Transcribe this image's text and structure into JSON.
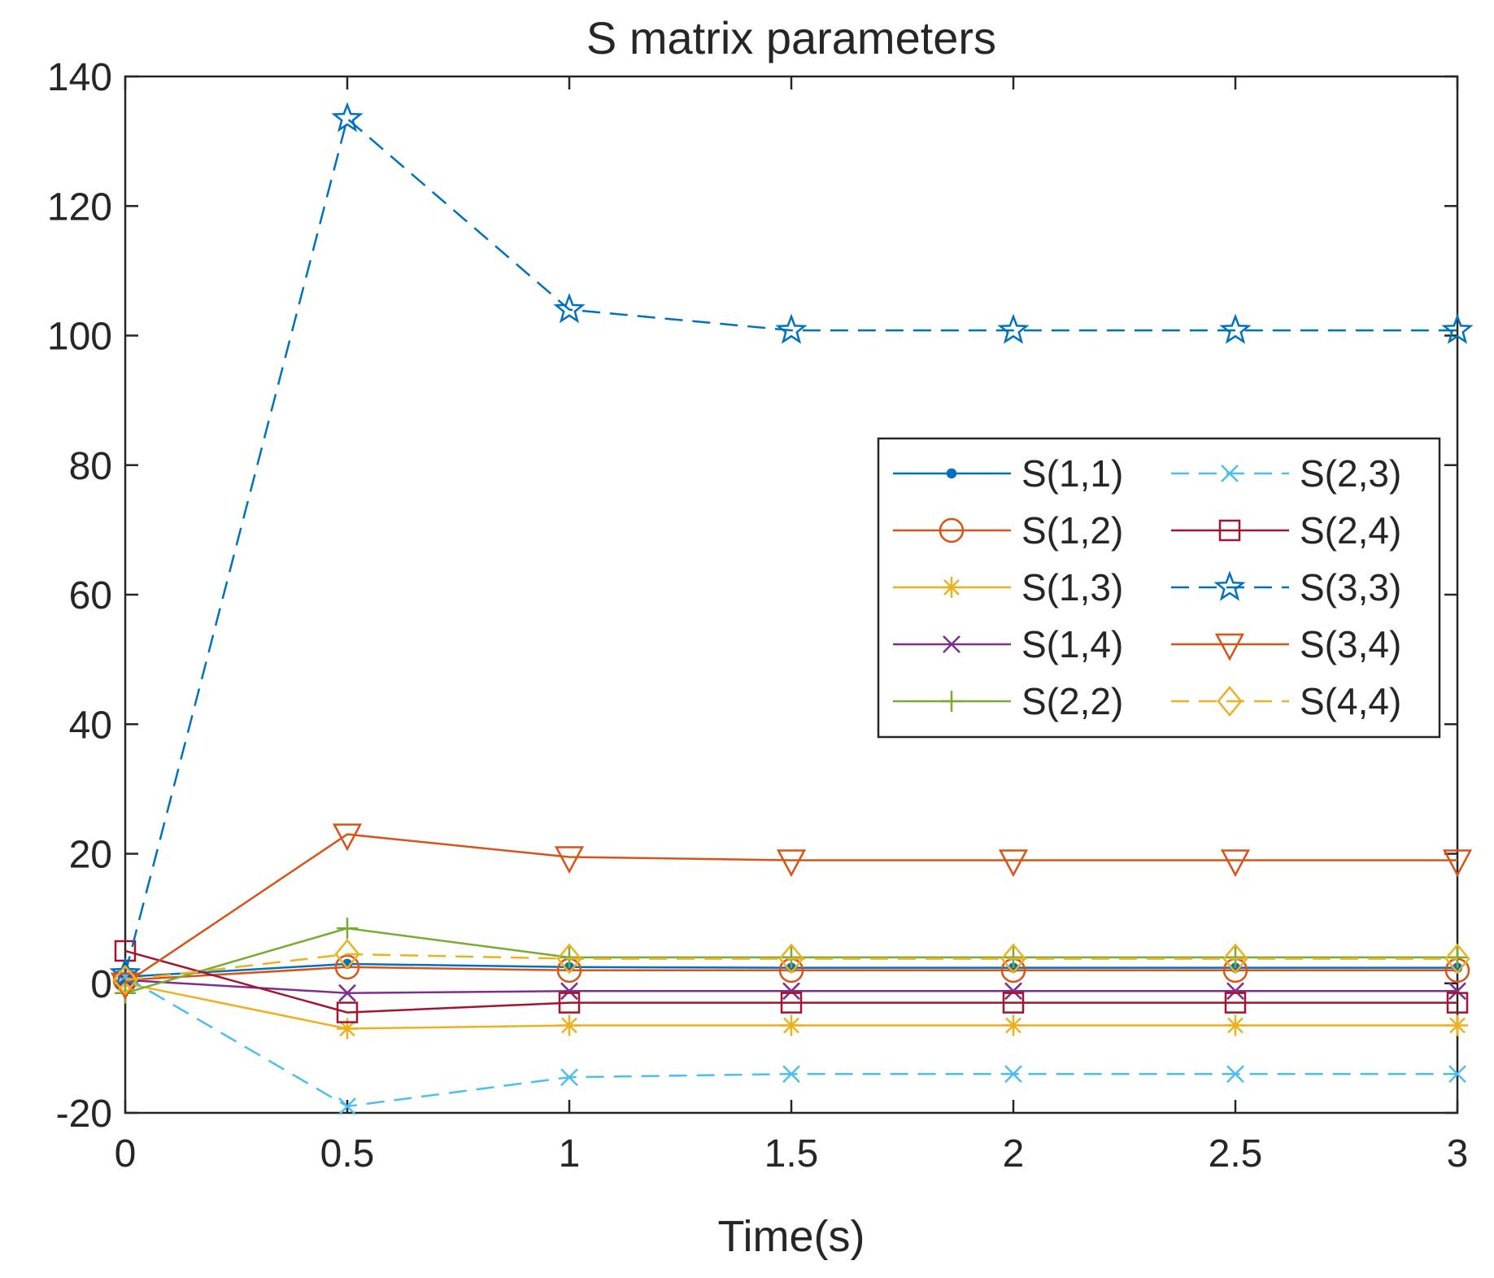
{
  "chart_data": {
    "type": "line",
    "title": "S matrix parameters",
    "xlabel": "Time(s)",
    "ylabel": "",
    "xlim": [
      0,
      3
    ],
    "ylim": [
      -20,
      140
    ],
    "xticks": [
      0,
      0.5,
      1,
      1.5,
      2,
      2.5,
      3
    ],
    "xtick_labels": [
      "0",
      "0.5",
      "1",
      "1.5",
      "2",
      "2.5",
      "3"
    ],
    "yticks": [
      -20,
      0,
      20,
      40,
      60,
      80,
      100,
      120,
      140
    ],
    "ytick_labels": [
      "-20",
      "0",
      "20",
      "40",
      "60",
      "80",
      "100",
      "120",
      "140"
    ],
    "grid": false,
    "legend_position": "right",
    "legend_columns": 2,
    "x": [
      0,
      0.5,
      1,
      1.5,
      2,
      2.5,
      3
    ],
    "series": [
      {
        "name": "S(1,1)",
        "color": "#0072BD",
        "line": "solid",
        "marker": "dot",
        "values": [
          1.0,
          3.0,
          2.5,
          2.4,
          2.4,
          2.4,
          2.4
        ]
      },
      {
        "name": "S(1,2)",
        "color": "#D95319",
        "line": "solid",
        "marker": "circle",
        "values": [
          0.5,
          2.5,
          2.0,
          2.0,
          2.0,
          2.0,
          2.0
        ]
      },
      {
        "name": "S(1,3)",
        "color": "#EDB120",
        "line": "solid",
        "marker": "asterisk",
        "values": [
          0.0,
          -7.0,
          -6.5,
          -6.5,
          -6.5,
          -6.5,
          -6.5
        ]
      },
      {
        "name": "S(1,4)",
        "color": "#7E2F8E",
        "line": "solid",
        "marker": "x",
        "values": [
          0.5,
          -1.5,
          -1.2,
          -1.2,
          -1.2,
          -1.2,
          -1.2
        ]
      },
      {
        "name": "S(2,2)",
        "color": "#77AC30",
        "line": "solid",
        "marker": "plus",
        "values": [
          -1.5,
          8.5,
          4.0,
          4.0,
          4.0,
          4.0,
          4.0
        ]
      },
      {
        "name": "S(2,3)",
        "color": "#4DBEEE",
        "line": "dashed",
        "marker": "x",
        "values": [
          1.0,
          -19.0,
          -14.5,
          -14.0,
          -14.0,
          -14.0,
          -14.0
        ]
      },
      {
        "name": "S(2,4)",
        "color": "#A2142F",
        "line": "solid",
        "marker": "square",
        "values": [
          5.0,
          -4.5,
          -3.0,
          -3.0,
          -3.0,
          -3.0,
          -3.0
        ]
      },
      {
        "name": "S(3,3)",
        "color": "#0072BD",
        "line": "dashed",
        "marker": "pentagram",
        "values": [
          1.5,
          133.5,
          104.0,
          100.8,
          100.8,
          100.8,
          100.8
        ]
      },
      {
        "name": "S(3,4)",
        "color": "#D95319",
        "line": "solid",
        "marker": "triangle-down",
        "values": [
          0.0,
          23.0,
          19.5,
          19.0,
          19.0,
          19.0,
          19.0
        ]
      },
      {
        "name": "S(4,4)",
        "color": "#EDB120",
        "line": "dashed",
        "marker": "diamond",
        "values": [
          0.5,
          4.5,
          3.8,
          3.8,
          3.8,
          3.8,
          3.8
        ]
      }
    ]
  }
}
